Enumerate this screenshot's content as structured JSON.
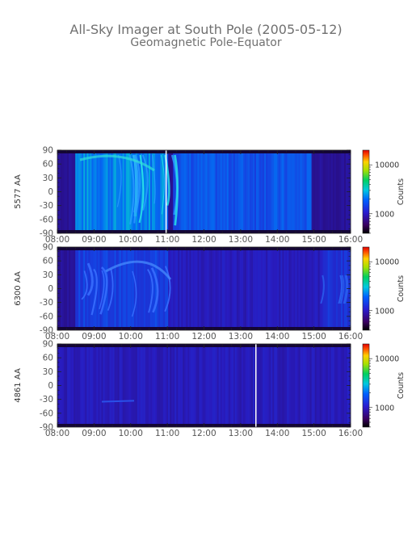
{
  "title": "All-Sky Imager at South Pole (2005-05-12)",
  "subtitle": "Geomagnetic Pole-Equator",
  "chart_data": [
    {
      "type": "heatmap",
      "ylabel": "5577 AA",
      "x_ticks": [
        "08:00",
        "09:00",
        "10:00",
        "11:00",
        "12:00",
        "13:00",
        "14:00",
        "15:00",
        "16:00"
      ],
      "xlim": [
        "08:00",
        "16:00"
      ],
      "y_ticks": [
        90,
        60,
        30,
        0,
        -30,
        -60,
        -90
      ],
      "ylim": [
        -90,
        90
      ],
      "colorbar": {
        "label": "Counts",
        "ticks": [
          10000,
          1000
        ],
        "tick_labels": [
          "10000",
          "1000"
        ],
        "scale": "log"
      },
      "data_gap_lines": [
        "10:58"
      ],
      "features": [
        {
          "start": "08:30",
          "end": "11:00",
          "level": 0.55,
          "desc": "bright arcs"
        },
        {
          "start": "11:10",
          "end": "14:55",
          "level": 0.42
        },
        {
          "start": "15:00",
          "end": "16:00",
          "level": 0.08
        }
      ]
    },
    {
      "type": "heatmap",
      "ylabel": "6300 AA",
      "x_ticks": [
        "08:00",
        "09:00",
        "10:00",
        "11:00",
        "12:00",
        "13:00",
        "14:00",
        "15:00",
        "16:00"
      ],
      "xlim": [
        "08:00",
        "16:00"
      ],
      "y_ticks": [
        90,
        60,
        30,
        0,
        -30,
        -60,
        -90
      ],
      "ylim": [
        -90,
        90
      ],
      "colorbar": {
        "label": "Counts",
        "ticks": [
          10000,
          1000
        ],
        "tick_labels": [
          "10000",
          "1000"
        ],
        "scale": "log"
      },
      "data_gap_lines": [],
      "features": [
        {
          "start": "08:30",
          "end": "11:00",
          "level": 0.35
        },
        {
          "start": "11:00",
          "end": "16:00",
          "level": 0.2
        },
        {
          "start": "15:15",
          "end": "16:00",
          "level": 0.3
        }
      ]
    },
    {
      "type": "heatmap",
      "ylabel": "4861 AA",
      "x_ticks": [
        "08:00",
        "09:00",
        "10:00",
        "11:00",
        "12:00",
        "13:00",
        "14:00",
        "15:00",
        "16:00"
      ],
      "xlim": [
        "08:00",
        "16:00"
      ],
      "y_ticks": [
        90,
        60,
        30,
        0,
        -30,
        -60,
        -90
      ],
      "ylim": [
        -90,
        90
      ],
      "colorbar": {
        "label": "Counts",
        "ticks": [
          10000,
          1000
        ],
        "tick_labels": [
          "10000",
          "1000"
        ],
        "scale": "log"
      },
      "data_gap_lines": [
        "13:25"
      ],
      "features": [
        {
          "start": "08:00",
          "end": "16:00",
          "level": 0.2
        }
      ]
    }
  ]
}
